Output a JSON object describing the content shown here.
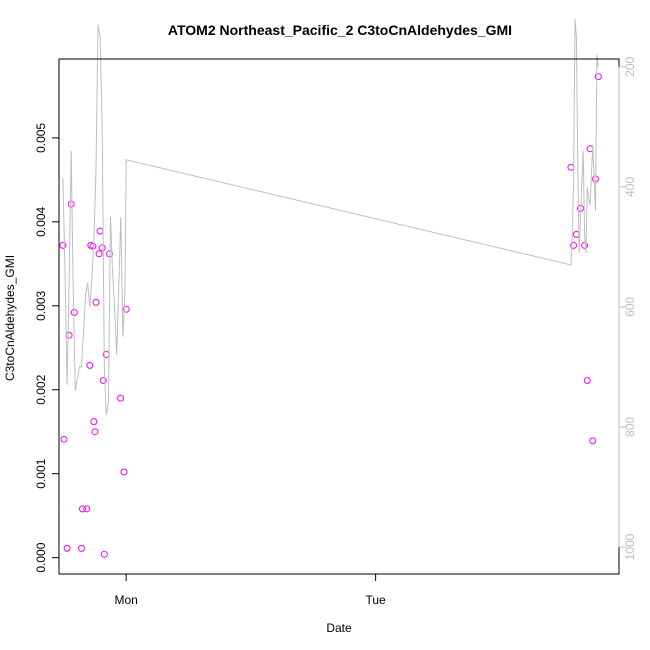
{
  "chart_data": {
    "type": "scatter",
    "title": "ATOM2 Northeast_Pacific_2 C3toCnAldehydes_GMI",
    "xlabel": "Date",
    "ylabel": "C3toCnAldehydes_GMI",
    "x_ticks": [
      "Mon",
      "Tue"
    ],
    "y_ticks": [
      "0.000",
      "0.001",
      "0.002",
      "0.003",
      "0.004",
      "0.005"
    ],
    "y2_ticks": [
      "200",
      "400",
      "600",
      "800",
      "1000"
    ],
    "xlim": [
      -0.2692,
      1.9756
    ],
    "ylim": [
      -0.000195,
      0.00594
    ],
    "y2lim": [
      1045,
      187
    ],
    "y2_inverted": true,
    "grid": false,
    "colors": {
      "points": "#ff00ff",
      "line": "#bebebe",
      "axes": "#000000",
      "right_axis": "#bebebe"
    },
    "series": [
      {
        "kind": "points",
        "x": [
          -0.2535,
          -0.2493,
          -0.2369,
          -0.2286,
          -0.2203,
          -0.2079,
          -0.1789,
          -0.1748,
          -0.1582,
          -0.1457,
          -0.1416,
          -0.1333,
          -0.1292,
          -0.125,
          -0.1209,
          -0.1084,
          -0.1043,
          -0.0962,
          -0.0918,
          -0.0877,
          -0.0794,
          -0.0669,
          -0.0221,
          -0.0089,
          0.0,
          1.7827,
          1.7937,
          1.8047,
          1.8211,
          1.8376,
          1.8486,
          1.8596,
          1.8706,
          1.8815,
          1.8925
        ],
        "y": [
          0.00372,
          0.00141,
          0.00011,
          0.00265,
          0.00421,
          0.00292,
          0.00011,
          0.00058,
          0.00058,
          0.00229,
          0.00372,
          0.00371,
          0.00162,
          0.0015,
          0.00304,
          0.00362,
          0.00389,
          0.00369,
          0.00211,
          4e-05,
          0.00242,
          0.00362,
          0.0019,
          0.00102,
          0.00296,
          0.00465,
          0.00372,
          0.00385,
          0.00416,
          0.00372,
          0.00211,
          0.00487,
          0.00139,
          0.00451,
          0.00573
        ]
      },
      {
        "kind": "line",
        "axis": "right",
        "x": [
          -0.2535,
          -0.2452,
          -0.2369,
          -0.2286,
          -0.2203,
          -0.2121,
          -0.2038,
          -0.1955,
          -0.1872,
          -0.1789,
          -0.1706,
          -0.1624,
          -0.1541,
          -0.1458,
          -0.1375,
          -0.1292,
          -0.1209,
          -0.1127,
          -0.1044,
          -0.0961,
          -0.0878,
          -0.0795,
          -0.0712,
          -0.0629,
          -0.0547,
          -0.0464,
          -0.0381,
          -0.0298,
          -0.0215,
          -0.0132,
          -0.0049,
          0.0,
          1.7827,
          1.7882,
          1.7937,
          1.7992,
          1.8047,
          1.8102,
          1.8157,
          1.8211,
          1.8266,
          1.8321,
          1.8376,
          1.8431,
          1.8486,
          1.8541,
          1.8596,
          1.8651,
          1.8706,
          1.8761,
          1.8815,
          1.887,
          1.8925
        ],
        "y": [
          385,
          540,
          730,
          560,
          340,
          570,
          740,
          720,
          700,
          700,
          640,
          580,
          560,
          600,
          550,
          490,
          370,
          130,
          150,
          300,
          700,
          780,
          760,
          450,
          540,
          600,
          680,
          570,
          450,
          650,
          580,
          355,
          530,
          480,
          390,
          120,
          150,
          350,
          510,
          450,
          395,
          340,
          480,
          510,
          400,
          420,
          430,
          380,
          330,
          390,
          440,
          180,
          200
        ]
      }
    ]
  }
}
